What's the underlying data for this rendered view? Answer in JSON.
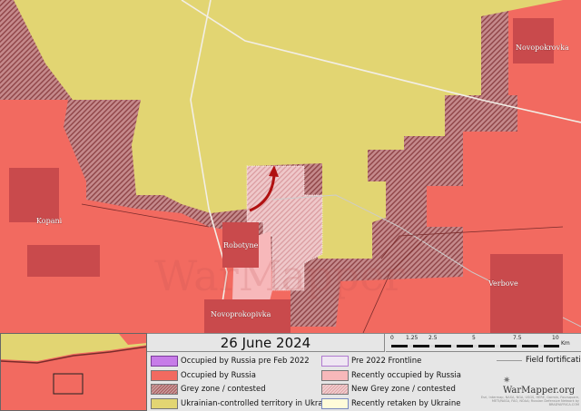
{
  "map": {
    "towns": [
      "Kopani",
      "Robotyne",
      "Novopokrovka",
      "Verbove",
      "Novoprokopivka"
    ],
    "watermark": "WarMapper",
    "colors": {
      "occupied": "#f26a60",
      "ukraine": "#e2d572",
      "grey": "#a85a5c",
      "recent": "#f7b8ba",
      "new_grey": "#e8b5b8",
      "arrow": "#b01010"
    }
  },
  "legend": {
    "date": "26 June 2024",
    "scale": {
      "ticks": [
        "0",
        "1.25",
        "2.5",
        "5",
        "7.5",
        "10"
      ],
      "unit": "Km"
    },
    "items": [
      {
        "label": "Occupied by Russia pre Feb 2022",
        "color": "#c77ce8"
      },
      {
        "label": "Occupied by Russia",
        "color": "#f26a60"
      },
      {
        "label": "Grey zone / contested",
        "color": "#a85a5c"
      },
      {
        "label": "Ukrainian-controlled territory in Ukraine",
        "color": "#e2d572"
      },
      {
        "label": "Pre 2022 Frontline",
        "color": "#efe6f3"
      },
      {
        "label": "Recently occupied by Russia",
        "color": "#f7b8ba"
      },
      {
        "label": "New Grey zone / contested",
        "color": "#e8b5b8"
      },
      {
        "label": "Recently retaken by Ukraine",
        "color": "#fffbd9"
      }
    ],
    "field_fortifications": "Field fortifications",
    "brand": "WarMapper.org",
    "credits": "Esri, Intermap, NASA, NGA, USGS, HERE, Garmin, Foursquare, METI/NASA, FAO, NOAA; Russian Defensive Network by BRADYAFRICA.COM"
  }
}
